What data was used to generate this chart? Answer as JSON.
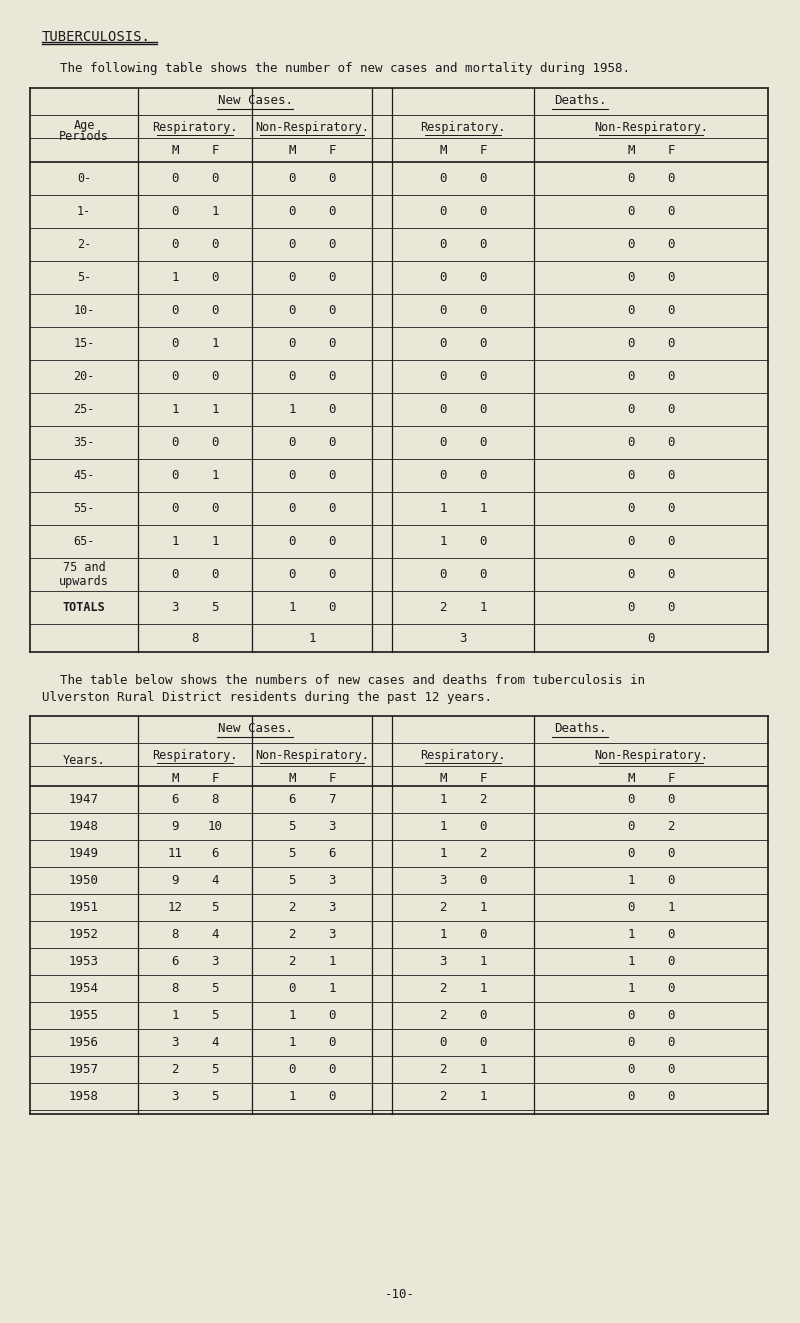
{
  "bg_color": "#eae6d8",
  "text_color": "#1a1a1a",
  "title": "TUBERCULOSIS.",
  "intro1": "The following table shows the number of new cases and mortality during 1958.",
  "table1_rows": [
    [
      "0-",
      "0",
      "0",
      "0",
      "0",
      "0",
      "0",
      "0",
      "0"
    ],
    [
      "1-",
      "0",
      "1",
      "0",
      "0",
      "0",
      "0",
      "0",
      "0"
    ],
    [
      "2-",
      "0",
      "0",
      "0",
      "0",
      "0",
      "0",
      "0",
      "0"
    ],
    [
      "5-",
      "1",
      "0",
      "0",
      "0",
      "0",
      "0",
      "0",
      "0"
    ],
    [
      "10-",
      "0",
      "0",
      "0",
      "0",
      "0",
      "0",
      "0",
      "0"
    ],
    [
      "15-",
      "0",
      "1",
      "0",
      "0",
      "0",
      "0",
      "0",
      "0"
    ],
    [
      "20-",
      "0",
      "0",
      "0",
      "0",
      "0",
      "0",
      "0",
      "0"
    ],
    [
      "25-",
      "1",
      "1",
      "1",
      "0",
      "0",
      "0",
      "0",
      "0"
    ],
    [
      "35-",
      "0",
      "0",
      "0",
      "0",
      "0",
      "0",
      "0",
      "0"
    ],
    [
      "45-",
      "0",
      "1",
      "0",
      "0",
      "0",
      "0",
      "0",
      "0"
    ],
    [
      "55-",
      "0",
      "0",
      "0",
      "0",
      "1",
      "1",
      "0",
      "0"
    ],
    [
      "65-",
      "1",
      "1",
      "0",
      "0",
      "1",
      "0",
      "0",
      "0"
    ],
    [
      "75 and\nupwards",
      "0",
      "0",
      "0",
      "0",
      "0",
      "0",
      "0",
      "0"
    ],
    [
      "TOTALS",
      "3",
      "5",
      "1",
      "0",
      "2",
      "1",
      "0",
      "0"
    ]
  ],
  "table1_subtotals": [
    "8",
    "1",
    "3",
    "0"
  ],
  "intro2a": "The table below shows the numbers of new cases and deaths from tuberculosis in",
  "intro2b": "Ulverston Rural District residents during the past 12 years.",
  "table2_rows": [
    [
      "1947",
      "6",
      "8",
      "6",
      "7",
      "1",
      "2",
      "0",
      "0"
    ],
    [
      "1948",
      "9",
      "10",
      "5",
      "3",
      "1",
      "0",
      "0",
      "2"
    ],
    [
      "1949",
      "11",
      "6",
      "5",
      "6",
      "1",
      "2",
      "0",
      "0"
    ],
    [
      "1950",
      "9",
      "4",
      "5",
      "3",
      "3",
      "0",
      "1",
      "0"
    ],
    [
      "1951",
      "12",
      "5",
      "2",
      "3",
      "2",
      "1",
      "0",
      "1"
    ],
    [
      "1952",
      "8",
      "4",
      "2",
      "3",
      "1",
      "0",
      "1",
      "0"
    ],
    [
      "1953",
      "6",
      "3",
      "2",
      "1",
      "3",
      "1",
      "1",
      "0"
    ],
    [
      "1954",
      "8",
      "5",
      "0",
      "1",
      "2",
      "1",
      "1",
      "0"
    ],
    [
      "1955",
      "1",
      "5",
      "1",
      "0",
      "2",
      "0",
      "0",
      "0"
    ],
    [
      "1956",
      "3",
      "4",
      "1",
      "0",
      "0",
      "0",
      "0",
      "0"
    ],
    [
      "1957",
      "2",
      "5",
      "0",
      "0",
      "2",
      "1",
      "0",
      "0"
    ],
    [
      "1958",
      "3",
      "5",
      "1",
      "0",
      "2",
      "1",
      "0",
      "0"
    ]
  ],
  "footer": "-10-"
}
